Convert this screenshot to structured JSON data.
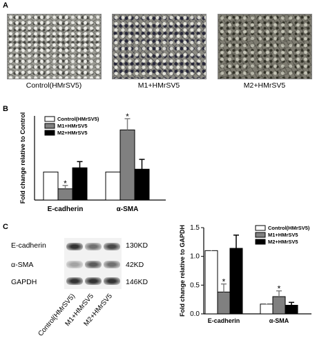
{
  "panel_a": {
    "label": "A",
    "captions": [
      "Control(HMrSV5)",
      "M1+HMrSV5",
      "M2+HMrSV5"
    ]
  },
  "panel_b": {
    "label": "B"
  },
  "panel_c": {
    "label": "C",
    "blot_rows": [
      "E-cadherin",
      "α-SMA",
      "GAPDH"
    ],
    "kd_labels": [
      "130KD",
      "42KD",
      "146KD"
    ],
    "lanes": [
      "Control(HMrSV5)",
      "M1+HMrSV5",
      "M2+HMrSV5"
    ],
    "band_intensity": {
      "E-cadherin": [
        0.9,
        0.6,
        0.8
      ],
      "α-SMA": [
        0.35,
        0.7,
        0.6
      ],
      "GAPDH": [
        0.9,
        0.9,
        0.9
      ]
    }
  },
  "colors": {
    "control": "#ffffff",
    "m1": "#808080",
    "m2": "#000000"
  },
  "chart_data": [
    {
      "type": "bar",
      "panel": "B",
      "categories": [
        "E-cadherin",
        "α-SMA"
      ],
      "series": [
        {
          "name": "Control(HMrSV5)",
          "values": [
            1.0,
            1.0
          ],
          "errors": [
            0,
            0
          ],
          "color": "#ffffff"
        },
        {
          "name": "M1+HMrSV5",
          "values": [
            0.4,
            2.5
          ],
          "errors": [
            0.12,
            0.4
          ],
          "color": "#808080"
        },
        {
          "name": "M2+HMrSV5",
          "values": [
            1.15,
            1.1
          ],
          "errors": [
            0.22,
            0.35
          ],
          "color": "#000000"
        }
      ],
      "significance": [
        {
          "category": "E-cadherin",
          "series": "M1+HMrSV5",
          "mark": "*"
        },
        {
          "category": "α-SMA",
          "series": "M1+HMrSV5",
          "mark": "*"
        }
      ],
      "ylabel": "Fold change relative to Control",
      "ylim": [
        0,
        3
      ],
      "legend": "top-left",
      "grid": false
    },
    {
      "type": "bar",
      "panel": "C",
      "categories": [
        "E-cadherin",
        "α-SMA"
      ],
      "series": [
        {
          "name": "Control(HMrSV5)",
          "values": [
            1.1,
            0.17
          ],
          "errors": [
            0.27,
            0.07
          ],
          "color": "#ffffff"
        },
        {
          "name": "M1+HMrSV5",
          "values": [
            0.38,
            0.3
          ],
          "errors": [
            0.14,
            0.1
          ],
          "color": "#808080"
        },
        {
          "name": "M2+HMrSV5",
          "values": [
            1.14,
            0.15
          ],
          "errors": [
            0.23,
            0.05
          ],
          "color": "#000000"
        }
      ],
      "significance": [
        {
          "category": "E-cadherin",
          "series": "M1+HMrSV5",
          "mark": "*"
        },
        {
          "category": "α-SMA",
          "series": "M1+HMrSV5",
          "mark": "*"
        }
      ],
      "ylabel": "Fold change relative to GAPDH",
      "ylim": [
        0,
        1.5
      ],
      "yticks": [
        "0.0",
        "0.5",
        "1.0",
        "1.5"
      ],
      "legend": "top-right",
      "grid": false
    }
  ]
}
